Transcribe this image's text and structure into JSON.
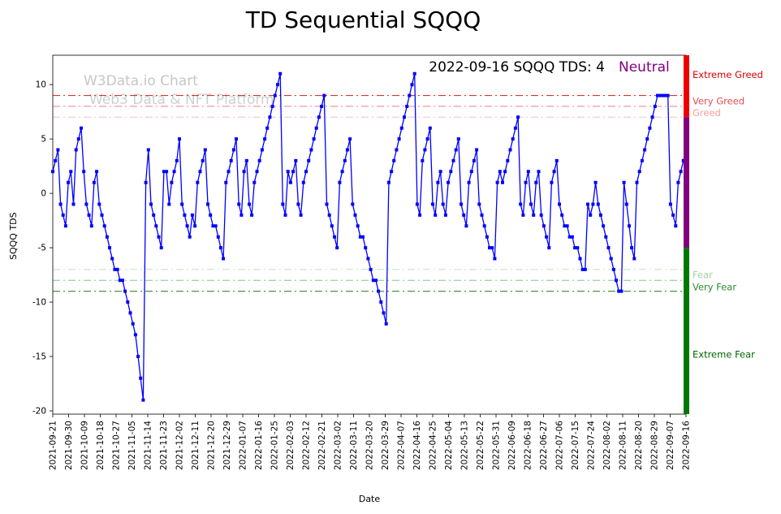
{
  "title": "TD Sequential SQQQ",
  "annotation": {
    "text": "2022-09-16 SQQQ TDS: 4",
    "sentiment": "Neutral",
    "sentiment_color": "#800080"
  },
  "watermark": {
    "line1": "W3Data.io Chart",
    "line2": "Web3 Data & NFT Platform"
  },
  "chart_data": {
    "type": "line",
    "title": "TD Sequential SQQQ",
    "xlabel": "Date",
    "ylabel": "SQQQ TDS",
    "ylim": [
      -20.3,
      12.7
    ],
    "yticks": [
      10,
      5,
      0,
      -5,
      -10,
      -15,
      -20
    ],
    "grid": false,
    "line_color": "#0000ff",
    "marker": "square",
    "legend": "none",
    "x_tick_labels": [
      "2021-09-21",
      "2021-09-30",
      "2021-10-09",
      "2021-10-18",
      "2021-10-27",
      "2021-11-05",
      "2021-11-14",
      "2021-11-23",
      "2021-12-02",
      "2021-12-11",
      "2021-12-20",
      "2021-12-29",
      "2022-01-07",
      "2022-01-16",
      "2022-01-25",
      "2022-02-03",
      "2022-02-12",
      "2022-02-21",
      "2022-03-02",
      "2022-03-11",
      "2022-03-20",
      "2022-03-29",
      "2022-04-07",
      "2022-04-16",
      "2022-04-25",
      "2022-05-04",
      "2022-05-13",
      "2022-05-22",
      "2022-05-31",
      "2022-06-09",
      "2022-06-18",
      "2022-06-27",
      "2022-07-06",
      "2022-07-15",
      "2022-07-24",
      "2022-08-02",
      "2022-08-11",
      "2022-08-20",
      "2022-08-29",
      "2022-09-07",
      "2022-09-16"
    ],
    "values": [
      2,
      3,
      4,
      -1,
      -2,
      -3,
      1,
      2,
      -1,
      4,
      5,
      6,
      2,
      -1,
      -2,
      -3,
      1,
      2,
      -1,
      -2,
      -3,
      -4,
      -5,
      -6,
      -7,
      -7,
      -8,
      -8,
      -9,
      -10,
      -11,
      -12,
      -13,
      -15,
      -17,
      -19,
      1,
      4,
      -1,
      -2,
      -3,
      -4,
      -5,
      2,
      2,
      -1,
      1,
      2,
      3,
      5,
      -1,
      -2,
      -3,
      -4,
      -2,
      -3,
      1,
      2,
      3,
      4,
      -1,
      -2,
      -3,
      -3,
      -4,
      -5,
      -6,
      1,
      2,
      3,
      4,
      5,
      -1,
      -2,
      2,
      3,
      -1,
      -2,
      1,
      2,
      3,
      4,
      5,
      6,
      7,
      8,
      9,
      10,
      11,
      -1,
      -2,
      2,
      1,
      2,
      3,
      -1,
      -2,
      1,
      2,
      3,
      4,
      5,
      6,
      7,
      8,
      9,
      -1,
      -2,
      -3,
      -4,
      -5,
      1,
      2,
      3,
      4,
      5,
      -1,
      -2,
      -3,
      -4,
      -4,
      -5,
      -6,
      -7,
      -8,
      -8,
      -9,
      -10,
      -11,
      -12,
      1,
      2,
      3,
      4,
      5,
      6,
      7,
      8,
      9,
      10,
      11,
      -1,
      -2,
      3,
      4,
      5,
      6,
      -1,
      -2,
      1,
      2,
      -1,
      -2,
      1,
      2,
      3,
      4,
      5,
      -1,
      -2,
      -3,
      1,
      2,
      3,
      4,
      -1,
      -2,
      -3,
      -4,
      -5,
      -5,
      -6,
      1,
      2,
      1,
      2,
      3,
      4,
      5,
      6,
      7,
      -1,
      -2,
      1,
      2,
      -1,
      -2,
      1,
      2,
      -2,
      -3,
      -4,
      -5,
      1,
      2,
      3,
      -1,
      -2,
      -3,
      -3,
      -4,
      -4,
      -5,
      -5,
      -6,
      -7,
      -7,
      -1,
      -2,
      -1,
      1,
      -1,
      -2,
      -3,
      -4,
      -5,
      -6,
      -7,
      -8,
      -9,
      -9,
      1,
      -1,
      -3,
      -5,
      -6,
      1,
      2,
      3,
      4,
      5,
      6,
      7,
      8,
      9,
      9,
      9,
      9,
      9,
      -1,
      -2,
      -3,
      1,
      2,
      3,
      4
    ],
    "levels": [
      {
        "value": 9,
        "color": "#d02020",
        "opacity": 0.9
      },
      {
        "value": 8,
        "color": "#e66a6a",
        "opacity": 0.75
      },
      {
        "value": 7,
        "color": "#f5a8a8",
        "opacity": 0.65
      },
      {
        "value": -7,
        "color": "#a8d8a8",
        "opacity": 0.65
      },
      {
        "value": -8,
        "color": "#58b358",
        "opacity": 0.75
      },
      {
        "value": -9,
        "color": "#1d7d1d",
        "opacity": 0.9
      }
    ],
    "level_labels": [
      {
        "text": "Extreme Greed",
        "value": 10.9,
        "color": "#dd0000"
      },
      {
        "text": "Very Greed",
        "value": 8.5,
        "color": "#e85050"
      },
      {
        "text": "Greed",
        "value": 7.4,
        "color": "#f5a0a0"
      },
      {
        "text": "Fear",
        "value": -7.5,
        "color": "#9fd09f"
      },
      {
        "text": "Very Fear",
        "value": -8.6,
        "color": "#2e8b2e"
      },
      {
        "text": "Extreme Fear",
        "value": -14.8,
        "color": "#006400"
      }
    ],
    "colorbar": [
      {
        "from": 12.7,
        "to": 7,
        "color": "#ee0000"
      },
      {
        "from": 7,
        "to": -5,
        "color": "#800080"
      },
      {
        "from": -5,
        "to": -20.3,
        "color": "#007800"
      }
    ]
  }
}
